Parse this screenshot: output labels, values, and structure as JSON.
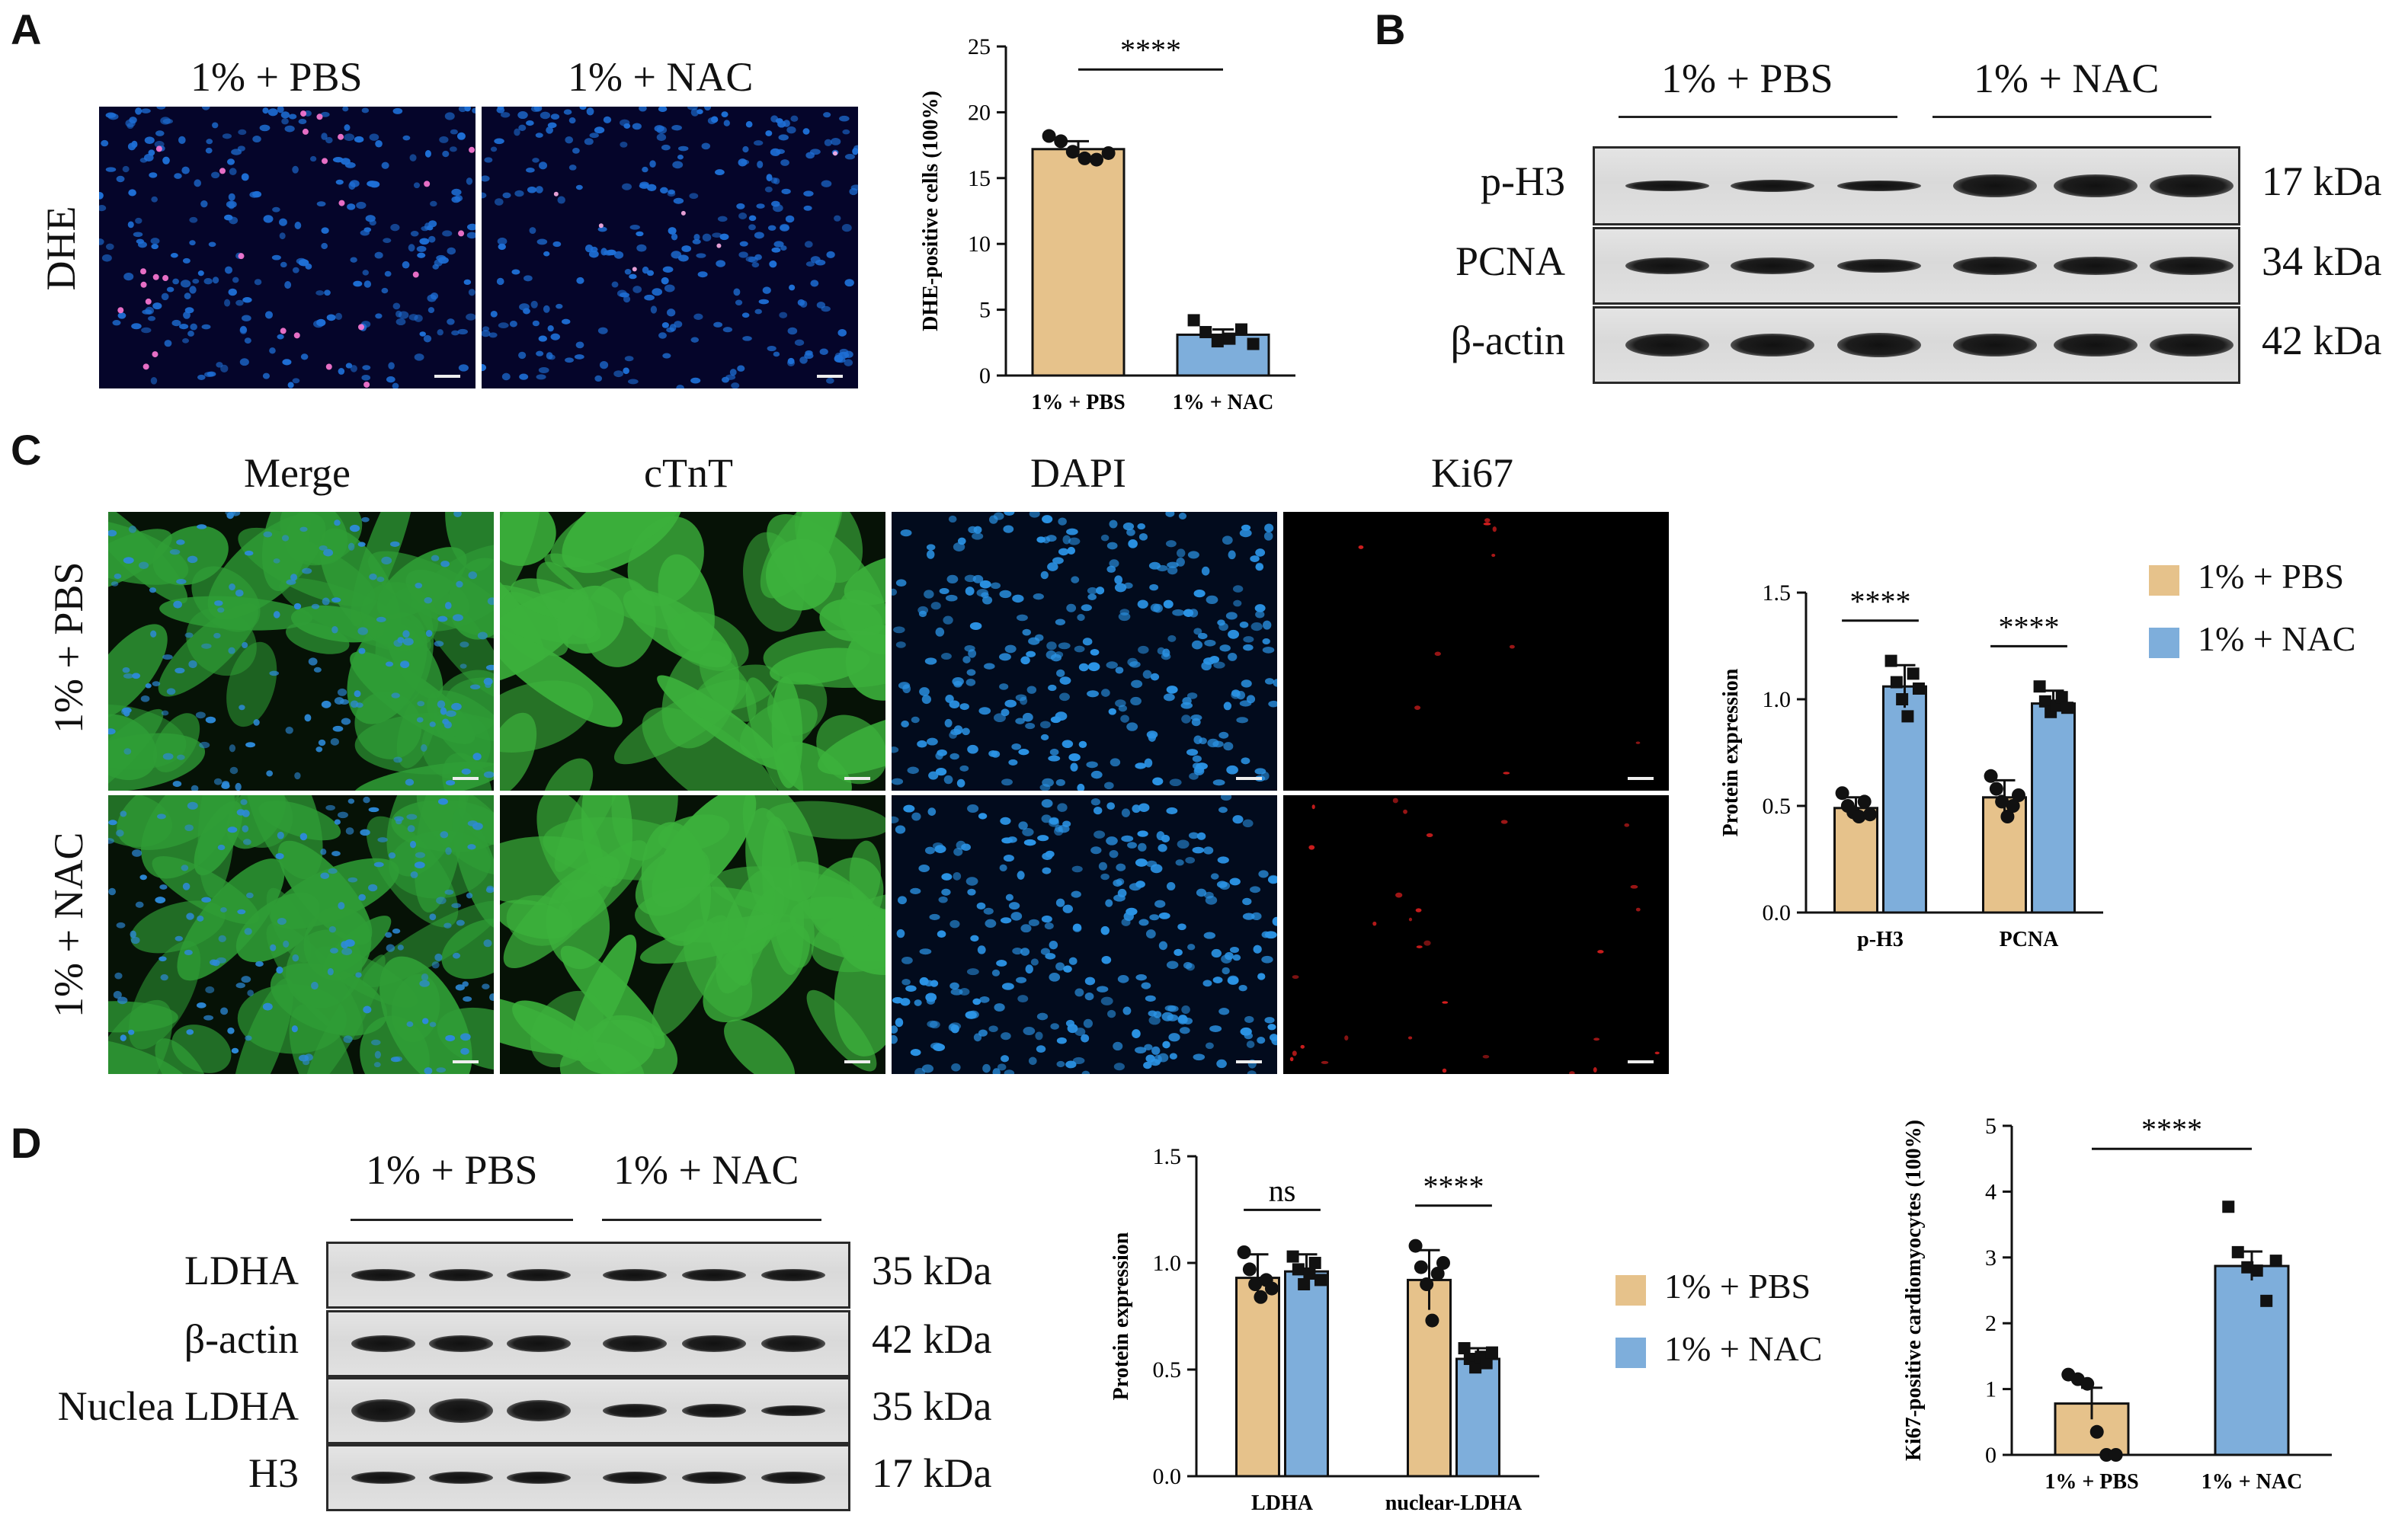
{
  "panels": {
    "A": {
      "label": "A",
      "conditions": [
        "1% + PBS",
        "1% + NAC"
      ],
      "stain": "DHE"
    },
    "B": {
      "label": "B",
      "groups": [
        "1% + PBS",
        "1% + NAC"
      ],
      "rows": [
        {
          "name": "p-H3",
          "kda": "17 kDa"
        },
        {
          "name": "PCNA",
          "kda": "34 kDa"
        },
        {
          "name": "β-actin",
          "kda": "42 kDa"
        }
      ]
    },
    "C": {
      "label": "C",
      "channels": [
        "Merge",
        "cTnT",
        "DAPI",
        "Ki67"
      ],
      "conditions": [
        "1% + PBS",
        "1% + NAC"
      ],
      "legend": [
        "1% + PBS",
        "1% + NAC"
      ]
    },
    "D": {
      "label": "D",
      "groups": [
        "1% + PBS",
        "1% + NAC"
      ],
      "rows": [
        {
          "name": "LDHA",
          "kda": "35 kDa"
        },
        {
          "name": "β-actin",
          "kda": "42 kDa"
        },
        {
          "name": "Nuclea LDHA",
          "kda": "35 kDa"
        },
        {
          "name": "H3",
          "kda": "17 kDa"
        }
      ],
      "legend": [
        "1% + PBS",
        "1% + NAC"
      ]
    }
  },
  "colors": {
    "pbs": "#e6c28b",
    "nac": "#7eaedb",
    "dapi_blue": "#1e6fd6",
    "ctnt_green": "#3fae3f",
    "ki67_red": "#d61e1e"
  },
  "chart_data": [
    {
      "type": "bar",
      "panel": "A",
      "categories": [
        "1% + PBS",
        "1% + NAC"
      ],
      "values": [
        17.2,
        3.1
      ],
      "errors": [
        0.6,
        0.4
      ],
      "points": [
        [
          18.2,
          17.8,
          17.0,
          16.5,
          16.4,
          16.9
        ],
        [
          4.2,
          3.3,
          2.6,
          2.8,
          3.5,
          2.4
        ]
      ],
      "ylabel": "DHE-positive cells (100%)",
      "ylim": [
        0,
        25
      ],
      "yticks": [
        0,
        5,
        10,
        15,
        20,
        25
      ],
      "significance": "****"
    },
    {
      "type": "bar",
      "panel": "C",
      "categories": [
        "p-H3",
        "PCNA"
      ],
      "series": [
        {
          "name": "1% + PBS",
          "values": [
            0.49,
            0.54
          ],
          "errors": [
            0.05,
            0.08
          ],
          "points": [
            [
              0.56,
              0.5,
              0.47,
              0.45,
              0.52,
              0.46
            ],
            [
              0.64,
              0.58,
              0.52,
              0.45,
              0.5,
              0.55
            ]
          ]
        },
        {
          "name": "1% + NAC",
          "values": [
            1.06,
            0.98
          ],
          "errors": [
            0.1,
            0.06
          ],
          "points": [
            [
              1.18,
              1.08,
              1.0,
              0.92,
              1.12,
              1.05
            ],
            [
              1.06,
              0.99,
              0.94,
              0.97,
              1.01,
              0.96
            ]
          ]
        }
      ],
      "ylabel": "Protein expression",
      "ylim": [
        0,
        1.5
      ],
      "yticks": [
        "0.0",
        "0.5",
        "1.0",
        "1.5"
      ],
      "significance": [
        "****",
        "****"
      ]
    },
    {
      "type": "bar",
      "panel": "D",
      "categories": [
        "LDHA",
        "nuclear-LDHA"
      ],
      "series": [
        {
          "name": "1% + PBS",
          "values": [
            0.93,
            0.92
          ],
          "errors": [
            0.11,
            0.14
          ],
          "points": [
            [
              1.05,
              0.97,
              0.9,
              0.84,
              0.92,
              0.88
            ],
            [
              1.08,
              0.98,
              0.9,
              0.73,
              0.95,
              1.0
            ]
          ]
        },
        {
          "name": "1% + NAC",
          "values": [
            0.96,
            0.55
          ],
          "errors": [
            0.08,
            0.05
          ],
          "points": [
            [
              1.03,
              0.97,
              0.9,
              0.95,
              1.0,
              0.92
            ],
            [
              0.6,
              0.55,
              0.51,
              0.56,
              0.53,
              0.58
            ]
          ]
        }
      ],
      "ylabel": "Protein expression",
      "ylim": [
        0,
        1.5
      ],
      "yticks": [
        "0.0",
        "0.5",
        "1.0",
        "1.5"
      ],
      "significance": [
        "ns",
        "****"
      ]
    },
    {
      "type": "bar",
      "panel": "D",
      "categories": [
        "1% + PBS",
        "1% + NAC"
      ],
      "values": [
        0.78,
        2.87
      ],
      "errors": [
        0.24,
        0.22
      ],
      "points": [
        [
          1.22,
          1.15,
          1.08,
          0.35,
          0.0,
          0.0
        ],
        [
          3.77,
          3.08,
          2.85,
          2.8,
          2.34,
          2.95
        ]
      ],
      "ylabel": "Ki67-positive cardiomyocytes (100%)",
      "ylim": [
        0,
        5
      ],
      "yticks": [
        0,
        1,
        2,
        3,
        4,
        5
      ],
      "significance": "****"
    }
  ]
}
